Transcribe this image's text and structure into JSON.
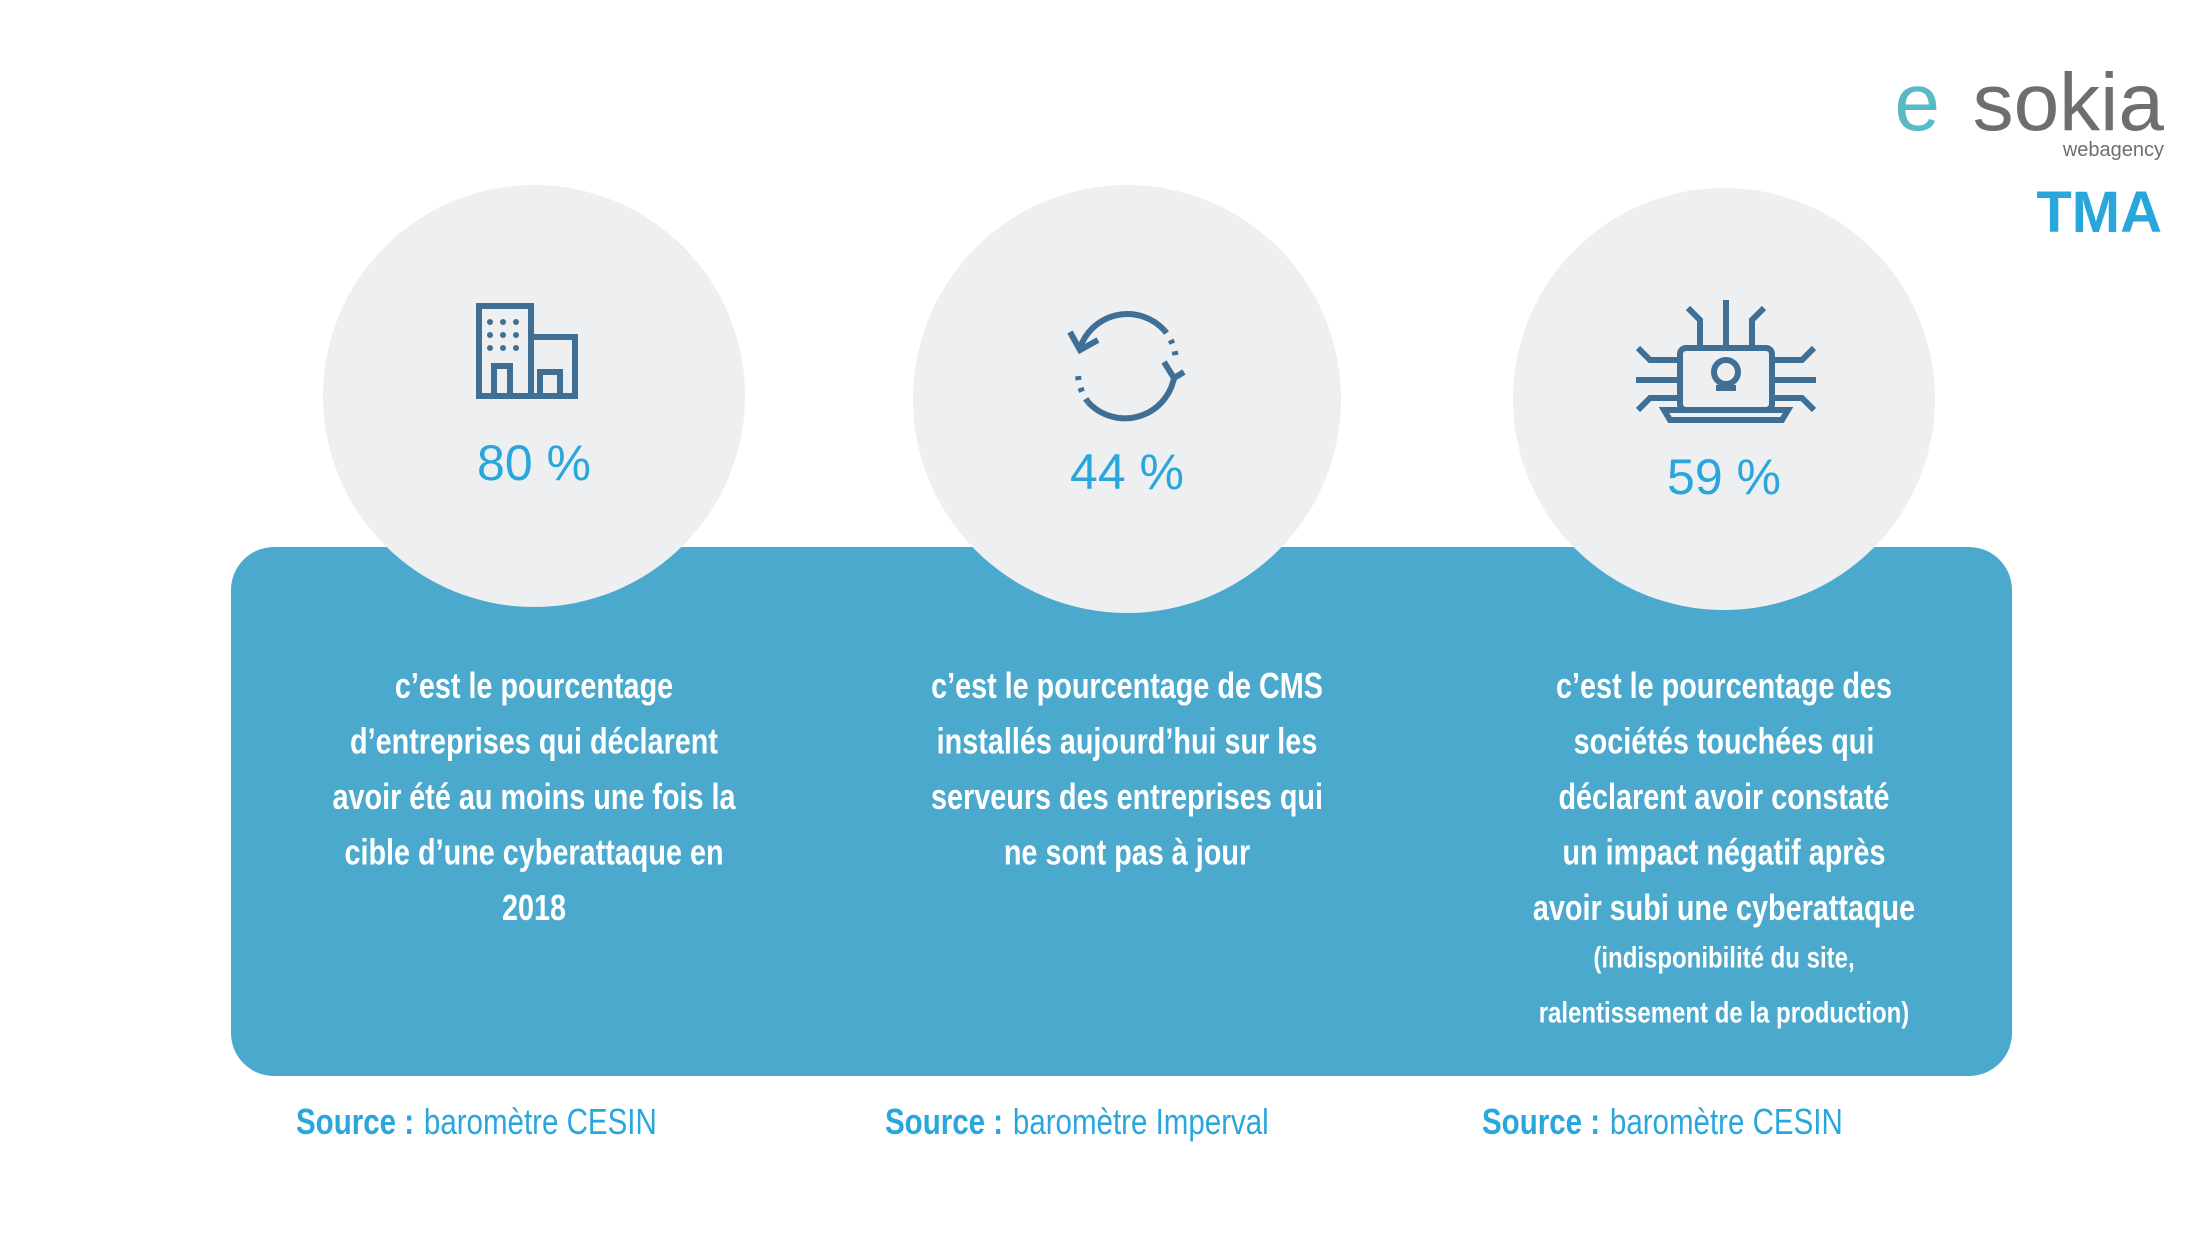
{
  "logo": {
    "mark": "e",
    "name": "sokia",
    "tagline": "webagency"
  },
  "tag": "TMA",
  "cards": [
    {
      "value": "80 %",
      "lines": [
        "c’est le pourcentage",
        "d’entreprises qui déclarent",
        "avoir été au moins une fois la",
        "cible d’une cyberattaque en",
        "2018"
      ],
      "note_lines": [],
      "source": {
        "label": "Source :",
        "text": "baromètre CESIN"
      }
    },
    {
      "value": "44 %",
      "lines": [
        "c’est le pourcentage de CMS",
        "installés aujourd’hui sur les",
        "serveurs des entreprises qui",
        "ne sont pas à jour"
      ],
      "note_lines": [],
      "source": {
        "label": "Source :",
        "text": "baromètre Imperval"
      }
    },
    {
      "value": "59 %",
      "lines": [
        "c’est le pourcentage des",
        "sociétés touchées qui",
        "déclarent avoir constaté",
        "un impact négatif après",
        "avoir subi une cyberattaque"
      ],
      "note_lines": [
        "(indisponibilité du site,",
        "ralentissement de la production)"
      ],
      "source": {
        "label": "Source :",
        "text": "baromètre CESIN"
      }
    }
  ]
}
